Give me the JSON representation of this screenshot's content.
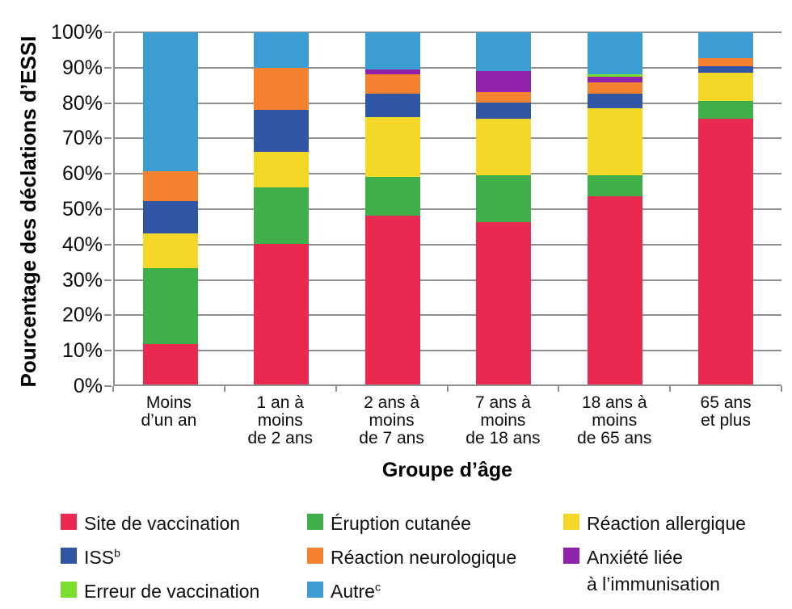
{
  "figure": {
    "background": "#ffffff",
    "axis_color": "#8F8F8F",
    "text_color": "#0d0d0d"
  },
  "chart_data": {
    "type": "bar",
    "subtype": "stacked-100-percent",
    "title": "",
    "xlabel": "Groupe d’âge",
    "ylabel": "Pourcentage des déclations d’ESSI",
    "ylim": [
      0,
      100
    ],
    "ytick_step": 10,
    "yticks": [
      "0%",
      "10%",
      "20%",
      "30%",
      "40%",
      "50%",
      "60%",
      "70%",
      "80%",
      "90%",
      "100%"
    ],
    "grid": "horizontal",
    "legend_position": "bottom",
    "categories": [
      [
        "Moins",
        "d’un an"
      ],
      [
        "1 an à",
        "moins",
        "de 2 ans"
      ],
      [
        "2 ans à",
        "moins",
        "de 7 ans"
      ],
      [
        "7 ans à",
        "moins",
        "de 18 ans"
      ],
      [
        "18 ans à",
        "moins",
        "de 65 ans"
      ],
      [
        "65 ans",
        "et plus"
      ]
    ],
    "series": [
      {
        "name": "Site de vaccination",
        "color": "#E9294F",
        "values": [
          11.5,
          40,
          48,
          46,
          53.5,
          75.5
        ]
      },
      {
        "name": "Éruption cutanée",
        "color": "#3FAF4A",
        "values": [
          21.5,
          16,
          11,
          13.5,
          6,
          5
        ]
      },
      {
        "name": "Réaction allergique",
        "color": "#F3D828",
        "values": [
          10,
          10,
          17,
          16,
          19,
          8
        ]
      },
      {
        "name": "ISS",
        "sup": "b",
        "color": "#3156A6",
        "values": [
          9,
          12,
          6.5,
          4.5,
          4,
          1.8
        ]
      },
      {
        "name": "Réaction neurologique",
        "color": "#F5822F",
        "values": [
          8.5,
          12,
          5.5,
          3,
          3.3,
          2.3
        ]
      },
      {
        "name": "Anxiété liée à l’immunisation",
        "label_lines": [
          "Anxiété liée",
          "à l’immunisation"
        ],
        "color": "#9122AC",
        "values": [
          0,
          0,
          1.5,
          6,
          1.7,
          0
        ]
      },
      {
        "name": "Erreur de vaccination",
        "color": "#7BDE2F",
        "values": [
          0,
          0,
          0,
          0,
          0.5,
          0
        ]
      },
      {
        "name": "Autre",
        "sup": "c",
        "color": "#3C9DD3",
        "values": [
          39.5,
          10,
          10.5,
          11,
          12,
          7.4
        ]
      }
    ],
    "legend_columns": [
      [
        0,
        3,
        6
      ],
      [
        1,
        4,
        7
      ],
      [
        2,
        5
      ]
    ]
  }
}
